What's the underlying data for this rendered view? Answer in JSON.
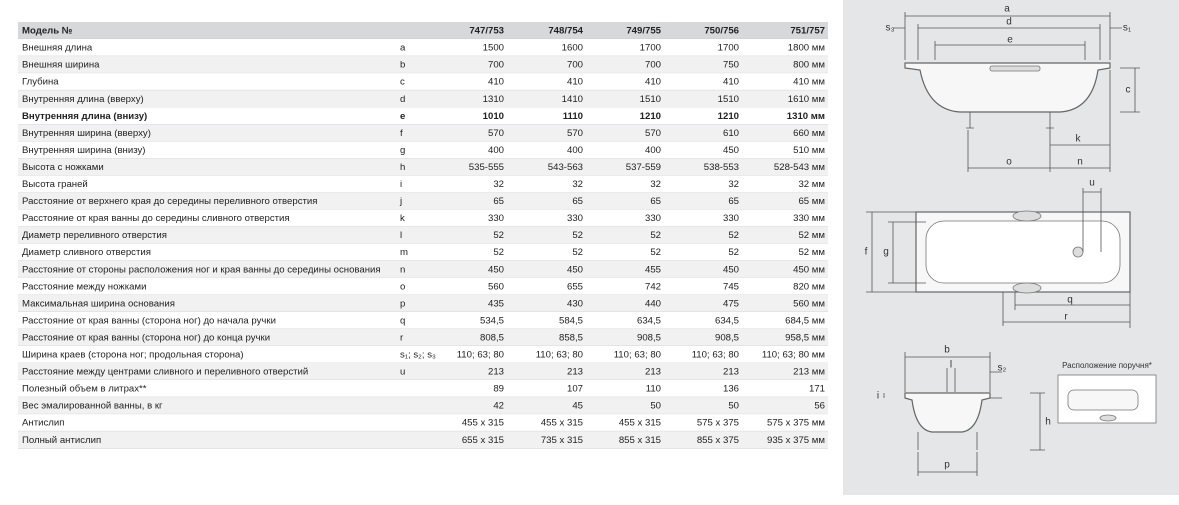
{
  "table": {
    "header": [
      "Модель №",
      "",
      "747/753",
      "748/754",
      "749/755",
      "750/756",
      "751/757"
    ],
    "rows": [
      [
        "Внешняя длина",
        "a",
        "1500",
        "1600",
        "1700",
        "1700",
        "1800 мм"
      ],
      [
        "Внешняя ширина",
        "b",
        "700",
        "700",
        "700",
        "750",
        "800 мм"
      ],
      [
        "Глубина",
        "c",
        "410",
        "410",
        "410",
        "410",
        "410 мм"
      ],
      [
        "Внутренняя длина (вверху)",
        "d",
        "1310",
        "1410",
        "1510",
        "1510",
        "1610 мм"
      ],
      [
        "Внутренняя длина (внизу)",
        "e",
        "1010",
        "1110",
        "1210",
        "1210",
        "1310 мм"
      ],
      [
        "Внутренняя ширина (вверху)",
        "f",
        "570",
        "570",
        "570",
        "610",
        "660 мм"
      ],
      [
        "Внутренняя ширина (внизу)",
        "g",
        "400",
        "400",
        "400",
        "450",
        "510 мм"
      ],
      [
        "Высота с ножками",
        "h",
        "535-555",
        "543-563",
        "537-559",
        "538-553",
        "528-543 мм"
      ],
      [
        "Высота граней",
        "i",
        "32",
        "32",
        "32",
        "32",
        "32 мм"
      ],
      [
        "Расстояние от верхнего края до середины переливного отверстия",
        "j",
        "65",
        "65",
        "65",
        "65",
        "65 мм"
      ],
      [
        "Расстояние от края ванны до середины сливного отверстия",
        "k",
        "330",
        "330",
        "330",
        "330",
        "330 мм"
      ],
      [
        "Диаметр переливного отверстия",
        "l",
        "52",
        "52",
        "52",
        "52",
        "52 мм"
      ],
      [
        "Диаметр сливного отверстия",
        "m",
        "52",
        "52",
        "52",
        "52",
        "52 мм"
      ],
      [
        "Расстояние от стороны расположения ног и края ванны до середины основания",
        "n",
        "450",
        "450",
        "455",
        "450",
        "450 мм"
      ],
      [
        "Расстояние между ножками",
        "o",
        "560",
        "655",
        "742",
        "745",
        "820 мм"
      ],
      [
        "Максимальная ширина основания",
        "p",
        "435",
        "430",
        "440",
        "475",
        "560 мм"
      ],
      [
        "Расстояние от края ванны (сторона ног) до начала ручки",
        "q",
        "534,5",
        "584,5",
        "634,5",
        "634,5",
        "684,5 мм"
      ],
      [
        "Расстояние от края ванны (сторона ног) до конца ручки",
        "r",
        "808,5",
        "858,5",
        "908,5",
        "908,5",
        "958,5 мм"
      ],
      [
        "Ширина краев (сторона ног; продольная сторона)",
        "s₁; s₂; s₃",
        "110; 63; 80",
        "110; 63; 80",
        "110; 63; 80",
        "110; 63; 80",
        "110; 63; 80 мм"
      ],
      [
        "Расстояние между центрами сливного и переливного отверстий",
        "u",
        "213",
        "213",
        "213",
        "213",
        "213 мм"
      ],
      [
        "Полезный объем в литрах**",
        "",
        "89",
        "107",
        "110",
        "136",
        "171"
      ],
      [
        "Вес эмалированной ванны, в кг",
        "",
        "42",
        "45",
        "50",
        "50",
        "56"
      ],
      [
        "Антислип",
        "",
        "455 x 315",
        "455 x 315",
        "455 x 315",
        "575 x 375",
        "575 x 375 мм"
      ],
      [
        "Полный антислип",
        "",
        "655 x 315",
        "735 x 315",
        "855 x 315",
        "855 x 375",
        "935 x 375 мм"
      ]
    ],
    "bold_row": 4
  },
  "diagram": {
    "labels": [
      "a",
      "s₃",
      "d",
      "s₁",
      "e",
      "c",
      "k",
      "o",
      "n",
      "u",
      "f",
      "g",
      "q",
      "r",
      "b",
      "l",
      "s₂",
      "i",
      "h",
      "p",
      "Расположение поручня*"
    ]
  }
}
